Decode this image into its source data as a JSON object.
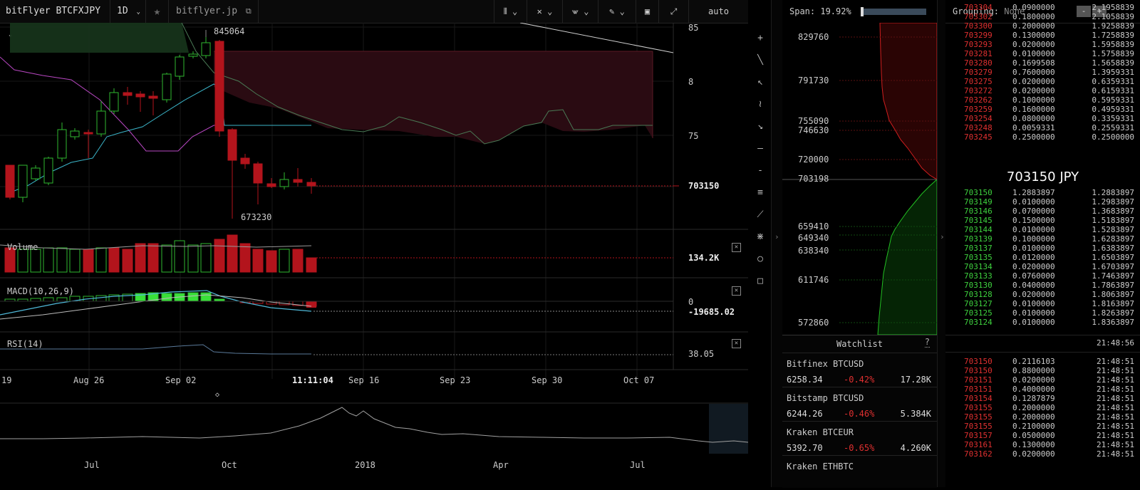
{
  "toolbar": {
    "exchange": "bitFlyer BTCFXJPY",
    "timeframe": "1D",
    "star_icon": "star-icon",
    "site": "bitflyer.jp",
    "scale": "auto"
  },
  "chart": {
    "price_axis": [
      "85",
      "8",
      "75",
      "70"
    ],
    "last_price": "703150",
    "high_label": "845064",
    "low_label": "673230",
    "volume_label": "Volume",
    "volume_value": "134.2K",
    "macd_label": "MACD(10,26,9)",
    "macd_zero": "0",
    "macd_value": "-19685.02",
    "rsi_label": "RSI(14)",
    "rsi_value": "38.05",
    "date_ticks": [
      "19",
      "Aug 26",
      "Sep 02",
      "11:11:04",
      "Sep 16",
      "Sep 23",
      "Sep 30",
      "Oct 07"
    ],
    "nav_ticks": [
      "Jul",
      "Oct",
      "2018",
      "Apr",
      "Jul"
    ],
    "nav_marker": "◇"
  },
  "depth": {
    "span_label": "Span:",
    "span_value": "19.92%",
    "prices": [
      "829760",
      "791730",
      "755090",
      "746630",
      "720000",
      "703198",
      "659410",
      "649340",
      "638340",
      "611746",
      "572860"
    ]
  },
  "watchlist": {
    "title": "Watchlist",
    "help": "?",
    "items": [
      {
        "name": "Bitfinex BTCUSD",
        "price": "6258.34",
        "change": "-0.42%",
        "volume": "17.28K"
      },
      {
        "name": "Bitstamp BTCUSD",
        "price": "6244.26",
        "change": "-0.46%",
        "volume": "5.384K"
      },
      {
        "name": "Kraken BTCEUR",
        "price": "5392.70",
        "change": "-0.65%",
        "volume": "4.260K"
      },
      {
        "name": "Kraken ETHBTC",
        "price": "",
        "change": "",
        "volume": ""
      }
    ]
  },
  "orderbook": {
    "grouping_label": "Grouping:",
    "grouping_value": "None",
    "minus": "-",
    "plus": "+",
    "mid_price": "703150 JPY",
    "asks": [
      [
        "703304",
        "0.0900000",
        "2.1958839"
      ],
      [
        "703302",
        "0.1800000",
        "2.1058839"
      ],
      [
        "703300",
        "0.2000000",
        "1.9258839"
      ],
      [
        "703299",
        "0.1300000",
        "1.7258839"
      ],
      [
        "703293",
        "0.0200000",
        "1.5958839"
      ],
      [
        "703281",
        "0.0100000",
        "1.5758839"
      ],
      [
        "703280",
        "0.1699508",
        "1.5658839"
      ],
      [
        "703279",
        "0.7600000",
        "1.3959331"
      ],
      [
        "703275",
        "0.0200000",
        "0.6359331"
      ],
      [
        "703272",
        "0.0200000",
        "0.6159331"
      ],
      [
        "703262",
        "0.1000000",
        "0.5959331"
      ],
      [
        "703259",
        "0.1600000",
        "0.4959331"
      ],
      [
        "703254",
        "0.0800000",
        "0.3359331"
      ],
      [
        "703248",
        "0.0059331",
        "0.2559331"
      ],
      [
        "703245",
        "0.2500000",
        "0.2500000"
      ]
    ],
    "bids": [
      [
        "703150",
        "1.2883897",
        "1.2883897"
      ],
      [
        "703149",
        "0.0100000",
        "1.2983897"
      ],
      [
        "703146",
        "0.0700000",
        "1.3683897"
      ],
      [
        "703145",
        "0.1500000",
        "1.5183897"
      ],
      [
        "703144",
        "0.0100000",
        "1.5283897"
      ],
      [
        "703139",
        "0.1000000",
        "1.6283897"
      ],
      [
        "703137",
        "0.0100000",
        "1.6383897"
      ],
      [
        "703135",
        "0.0120000",
        "1.6503897"
      ],
      [
        "703134",
        "0.0200000",
        "1.6703897"
      ],
      [
        "703133",
        "0.0760000",
        "1.7463897"
      ],
      [
        "703130",
        "0.0400000",
        "1.7863897"
      ],
      [
        "703128",
        "0.0200000",
        "1.8063897"
      ],
      [
        "703127",
        "0.0100000",
        "1.8163897"
      ],
      [
        "703125",
        "0.0100000",
        "1.8263897"
      ],
      [
        "703124",
        "0.0100000",
        "1.8363897"
      ]
    ],
    "trades_header_time": "21:48:56",
    "trades": [
      [
        "703150",
        "0.2116103",
        "21:48:51"
      ],
      [
        "703150",
        "0.8800000",
        "21:48:51"
      ],
      [
        "703151",
        "0.0200000",
        "21:48:51"
      ],
      [
        "703151",
        "0.4000000",
        "21:48:51"
      ],
      [
        "703154",
        "0.1287879",
        "21:48:51"
      ],
      [
        "703155",
        "0.2000000",
        "21:48:51"
      ],
      [
        "703155",
        "0.2000000",
        "21:48:51"
      ],
      [
        "703155",
        "0.2100000",
        "21:48:51"
      ],
      [
        "703157",
        "0.0500000",
        "21:48:51"
      ],
      [
        "703161",
        "0.1300000",
        "21:48:51"
      ],
      [
        "703162",
        "0.0200000",
        "21:48:51"
      ]
    ]
  },
  "colors": {
    "up": "#2fb82f",
    "down": "#b3141c",
    "accent_red": "#e03030",
    "accent_green": "#3ed13e"
  }
}
